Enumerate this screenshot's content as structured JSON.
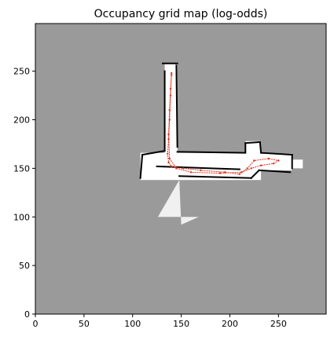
{
  "chart_data": {
    "type": "heatmap",
    "title": "Occupancy grid map (log-odds)",
    "xlabel": "",
    "ylabel": "",
    "xlim": [
      0,
      299
    ],
    "ylim": [
      0,
      299
    ],
    "x_ticks": [
      0,
      50,
      100,
      150,
      200,
      250
    ],
    "y_ticks": [
      0,
      50,
      100,
      150,
      200,
      250
    ],
    "grid": false,
    "legend": "none",
    "colors": {
      "unknown": "#9a9a9a",
      "free": "#ffffff",
      "occupied": "#000000",
      "trajectory": "#e0301e"
    },
    "free_regions": [
      {
        "x": [
          133,
          146
        ],
        "y": [
          152,
          258
        ]
      },
      {
        "x": [
          108,
          232
        ],
        "y": [
          138,
          166
        ]
      },
      {
        "x": [
          222,
          264
        ],
        "y": [
          148,
          165
        ]
      },
      {
        "x": [
          216,
          232
        ],
        "y": [
          163,
          178
        ]
      },
      {
        "x": [
          262,
          275
        ],
        "y": [
          150,
          159
        ]
      }
    ],
    "free_fan": {
      "apex": [
        148,
        138
      ],
      "spread": [
        [
          126,
          100
        ],
        [
          168,
          100
        ],
        [
          150,
          92
        ]
      ]
    },
    "walls": [
      [
        [
          131,
          258
        ],
        [
          146,
          258
        ]
      ],
      [
        [
          133,
          250
        ],
        [
          133,
          168
        ]
      ],
      [
        [
          145,
          256
        ],
        [
          146,
          172
        ]
      ],
      [
        [
          146,
          167
        ],
        [
          215,
          166
        ]
      ],
      [
        [
          133,
          168
        ],
        [
          110,
          164
        ]
      ],
      [
        [
          110,
          164
        ],
        [
          108,
          140
        ]
      ],
      [
        [
          125,
          152
        ],
        [
          210,
          149
        ]
      ],
      [
        [
          148,
          142
        ],
        [
          222,
          140
        ]
      ],
      [
        [
          222,
          140
        ],
        [
          230,
          148
        ]
      ],
      [
        [
          216,
          166
        ],
        [
          216,
          176
        ]
      ],
      [
        [
          216,
          176
        ],
        [
          231,
          177
        ]
      ],
      [
        [
          231,
          177
        ],
        [
          232,
          166
        ]
      ],
      [
        [
          232,
          166
        ],
        [
          264,
          164
        ]
      ],
      [
        [
          264,
          164
        ],
        [
          264,
          150
        ]
      ],
      [
        [
          230,
          148
        ],
        [
          262,
          146
        ]
      ]
    ],
    "trajectory": {
      "x": [
        140,
        139,
        138,
        137,
        136,
        137,
        140,
        144,
        152,
        170,
        195,
        210,
        218,
        225,
        240,
        250,
        245,
        232,
        222,
        212,
        190,
        160,
        145,
        138,
        137,
        138,
        139,
        140
      ],
      "y": [
        248,
        225,
        200,
        180,
        165,
        156,
        152,
        151,
        150,
        148,
        146,
        144,
        150,
        158,
        160,
        158,
        155,
        153,
        150,
        146,
        145,
        146,
        150,
        160,
        185,
        210,
        232,
        246
      ]
    }
  }
}
